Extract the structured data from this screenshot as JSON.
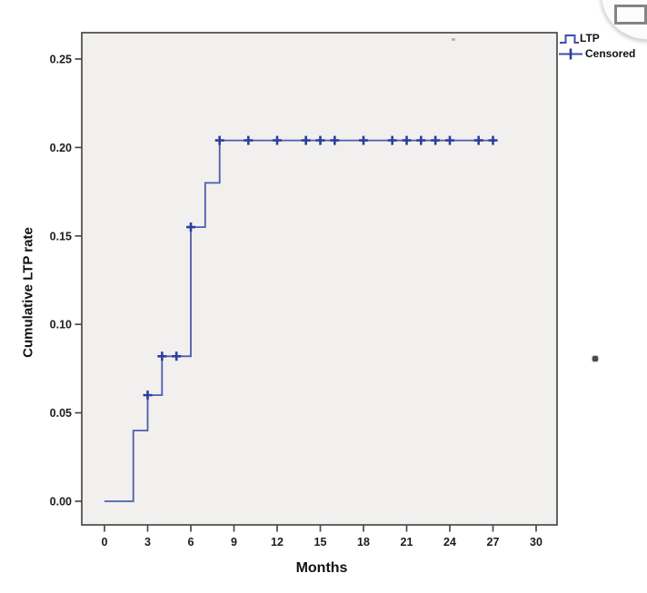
{
  "chart_data": {
    "type": "line",
    "variant": "kaplan_meier_cumulative_incidence_step",
    "title": "",
    "xlabel": "Months",
    "ylabel": "Cumulative LTP rate",
    "xlim": [
      0,
      30
    ],
    "ylim": [
      0.0,
      0.25
    ],
    "x_ticks": [
      0,
      3,
      6,
      9,
      12,
      15,
      18,
      21,
      24,
      27,
      30
    ],
    "x_tick_labels": [
      "0",
      "3",
      "6",
      "9",
      "12",
      "15",
      "18",
      "21",
      "24",
      "27",
      "30"
    ],
    "y_ticks": [
      0.0,
      0.05,
      0.1,
      0.15,
      0.2,
      0.25
    ],
    "y_tick_labels": [
      "0.00",
      "0.05",
      "0.10",
      "0.15",
      "0.20",
      "0.25"
    ],
    "grid": false,
    "legend_position": "top-right-outside",
    "plot_bg": "#f1f0ee",
    "frame_color": "#4a4a4a",
    "series": [
      {
        "name": "LTP",
        "kind": "step",
        "color": "#4c5dab",
        "step_points": [
          [
            0,
            0.0
          ],
          [
            2,
            0.0
          ],
          [
            2,
            0.04
          ],
          [
            3,
            0.04
          ],
          [
            3,
            0.06
          ],
          [
            4,
            0.06
          ],
          [
            4,
            0.082
          ],
          [
            6,
            0.082
          ],
          [
            6,
            0.155
          ],
          [
            7,
            0.155
          ],
          [
            7,
            0.18
          ],
          [
            8,
            0.18
          ],
          [
            8,
            0.204
          ],
          [
            27,
            0.204
          ]
        ]
      },
      {
        "name": "Censored",
        "kind": "plus_markers",
        "color": "#2c3f9d",
        "points": [
          [
            3,
            0.06
          ],
          [
            4,
            0.082
          ],
          [
            5,
            0.082
          ],
          [
            6,
            0.155
          ],
          [
            8,
            0.204
          ],
          [
            10,
            0.204
          ],
          [
            12,
            0.204
          ],
          [
            14,
            0.204
          ],
          [
            15,
            0.204
          ],
          [
            16,
            0.204
          ],
          [
            18,
            0.204
          ],
          [
            20,
            0.204
          ],
          [
            21,
            0.204
          ],
          [
            22,
            0.204
          ],
          [
            23,
            0.204
          ],
          [
            24,
            0.204
          ],
          [
            26,
            0.204
          ],
          [
            27,
            0.204
          ]
        ]
      }
    ]
  },
  "legend": {
    "items": [
      {
        "label": "LTP",
        "symbol": "step-line"
      },
      {
        "label": "Censored",
        "symbol": "plus-line"
      }
    ]
  }
}
